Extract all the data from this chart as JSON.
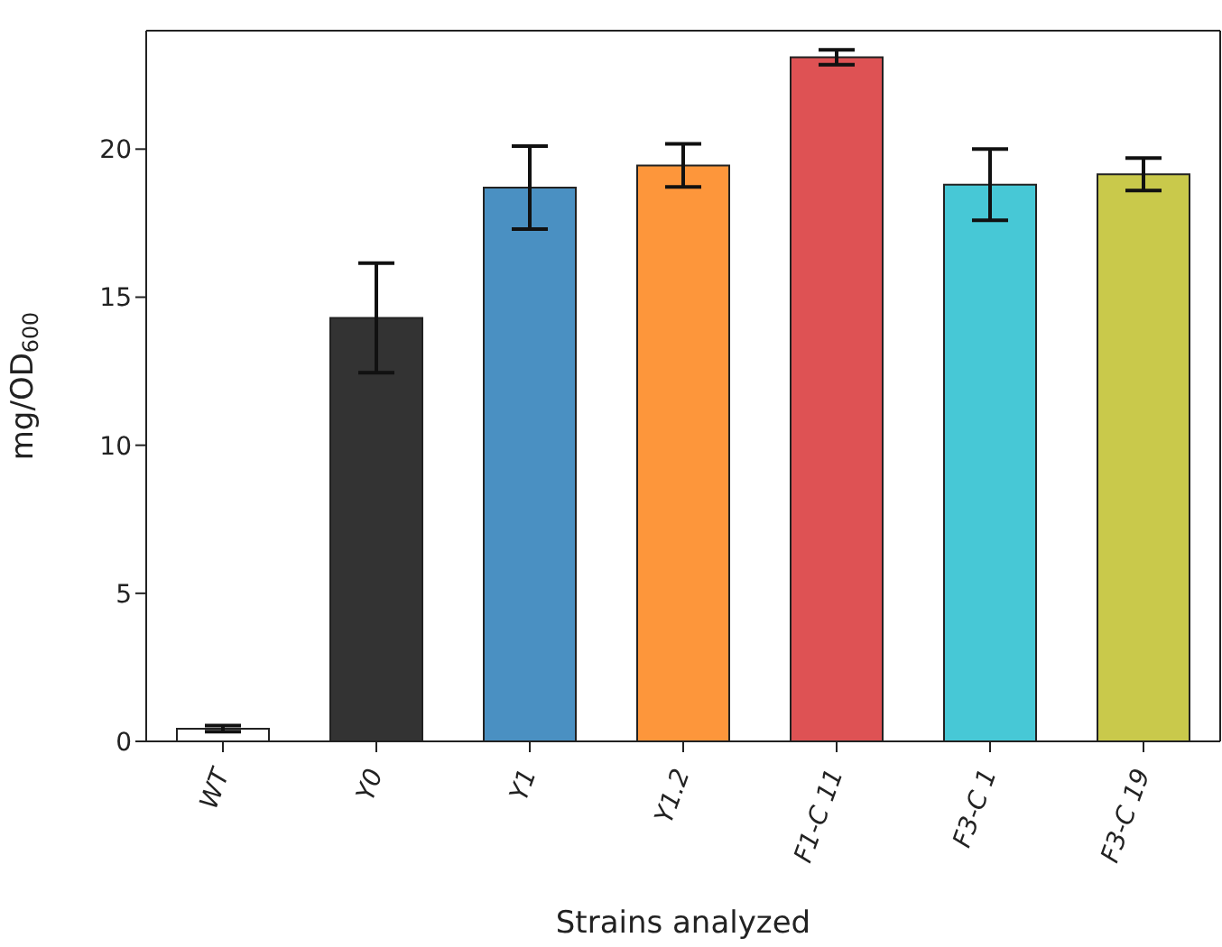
{
  "chart_data": {
    "type": "bar",
    "xlabel": "Strains analyzed",
    "ylabel": "mg/OD$_{600}$",
    "categories": [
      "WT",
      "Y0",
      "Y1",
      "Y1.2",
      "F1-C 11",
      "F3-C 1",
      "F3-C 19"
    ],
    "values": [
      0.43,
      14.3,
      18.7,
      19.45,
      23.1,
      18.8,
      19.15
    ],
    "errors": [
      0.1,
      1.85,
      1.4,
      0.73,
      0.25,
      1.2,
      0.55
    ],
    "colors": [
      "#ffffff",
      "#333333",
      "#4a90c2",
      "#fd963b",
      "#de5254",
      "#47c8d6",
      "#c9c94b"
    ],
    "ylim": [
      0,
      24
    ],
    "yticks": [
      0,
      5,
      10,
      15,
      20
    ],
    "grid": false
  }
}
